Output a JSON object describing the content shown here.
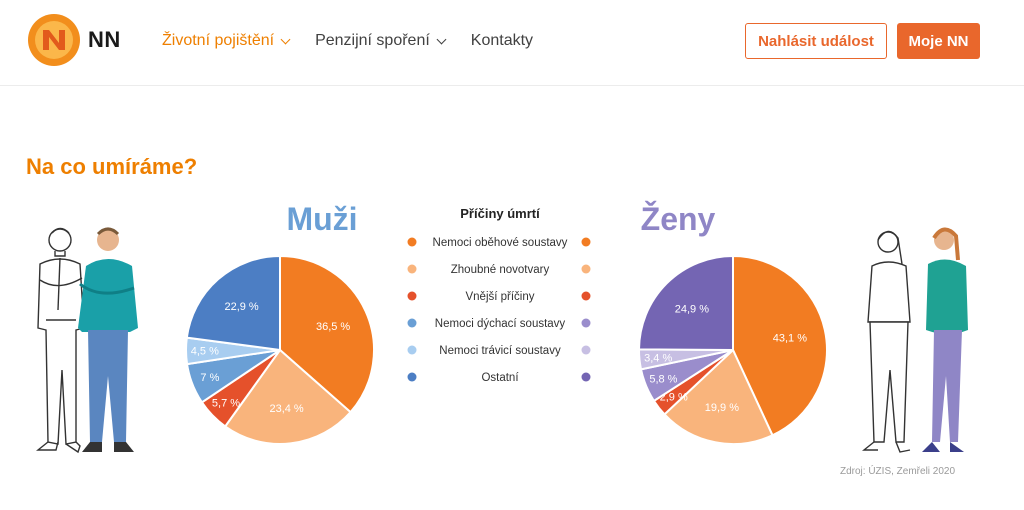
{
  "header": {
    "logo_text": "NN",
    "nav": [
      {
        "label": "Životní pojištění",
        "dropdown": true,
        "active": true
      },
      {
        "label": "Penzijní spoření",
        "dropdown": true,
        "active": false
      },
      {
        "label": "Kontakty",
        "dropdown": false,
        "active": false
      }
    ],
    "report_button": "Nahlásit událost",
    "account_button": "Moje NN"
  },
  "section_title": "Na co umíráme?",
  "source": "Zdroj: ÚZIS, Zemřeli 2020",
  "colors": {
    "brand_orange": "#ee7f00",
    "button_orange": "#e9672c"
  },
  "chart_data": {
    "type": "pie",
    "legend_title": "Příčiny úmrtí",
    "categories": [
      "Nemoci oběhové soustavy",
      "Zhoubné novotvary",
      "Vnější příčiny",
      "Nemoci dýchací soustavy",
      "Nemoci trávicí soustavy",
      "Ostatní"
    ],
    "series": [
      {
        "name": "Muži",
        "values": [
          36.5,
          23.4,
          5.7,
          7,
          4.5,
          22.9
        ],
        "labels": [
          "36,5 %",
          "23,4 %",
          "5,7 %",
          "7 %",
          "4,5 %",
          "22,9 %"
        ],
        "colors": [
          "#f27c22",
          "#f9b47c",
          "#e5512b",
          "#6a9fd5",
          "#a8cdf0",
          "#4c7ec4"
        ]
      },
      {
        "name": "Ženy",
        "values": [
          43.1,
          19.9,
          2.9,
          5.8,
          3.4,
          24.9
        ],
        "labels": [
          "43,1 %",
          "19,9 %",
          "2,9 %",
          "5,8 %",
          "3,4 %",
          "24,9 %"
        ],
        "colors": [
          "#f27c22",
          "#f9b47c",
          "#e5512b",
          "#9a8dcc",
          "#c7bfe3",
          "#7465b3"
        ]
      }
    ]
  }
}
